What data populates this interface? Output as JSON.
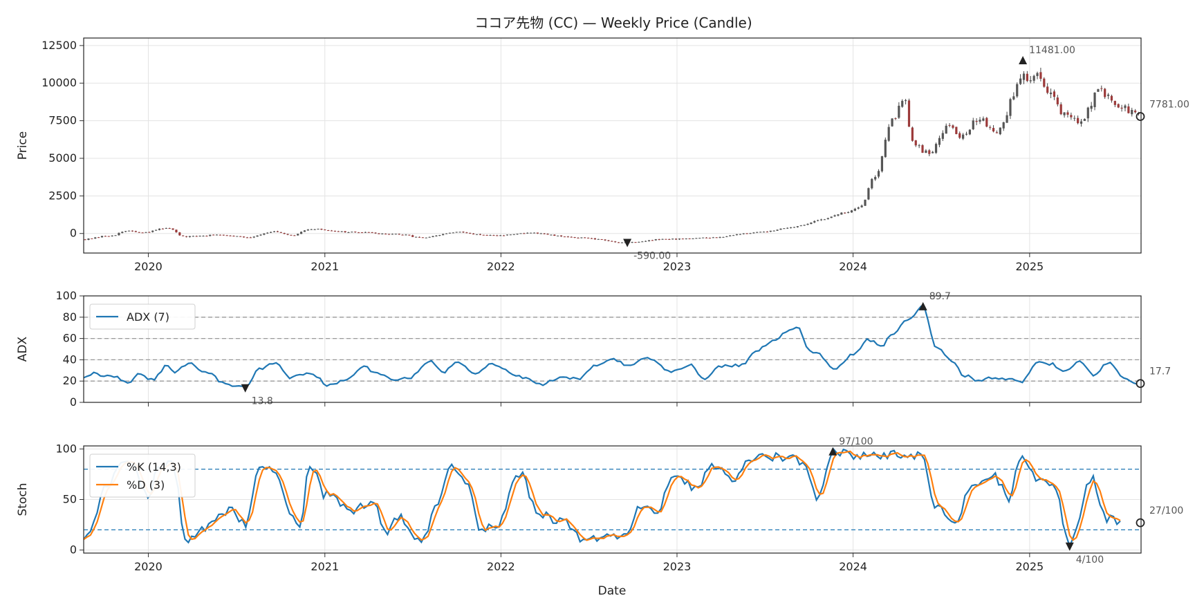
{
  "title": "ココア先物 (CC) — Weekly Price (Candle)",
  "xlabel": "Date",
  "chart_data": [
    {
      "type": "candlestick",
      "name": "price-panel",
      "ylabel": "Price",
      "ylim": [
        -1300,
        13000
      ],
      "yticks": [
        0,
        2500,
        5000,
        7500,
        10000,
        12500
      ],
      "xlim": [
        "2019-08-20",
        "2025-08-20"
      ],
      "xticks": [
        "2020",
        "2021",
        "2022",
        "2023",
        "2024",
        "2025"
      ],
      "grid": true,
      "anchors": [
        [
          "2019-08-23",
          -380
        ],
        [
          "2019-10-15",
          -140
        ],
        [
          "2019-11-20",
          180
        ],
        [
          "2019-12-20",
          40
        ],
        [
          "2020-02-10",
          380
        ],
        [
          "2020-03-15",
          -220
        ],
        [
          "2020-06-01",
          -80
        ],
        [
          "2020-07-25",
          -250
        ],
        [
          "2020-09-15",
          120
        ],
        [
          "2020-10-25",
          -150
        ],
        [
          "2020-12-01",
          300
        ],
        [
          "2021-03-01",
          80
        ],
        [
          "2021-06-01",
          -60
        ],
        [
          "2021-07-25",
          -280
        ],
        [
          "2021-10-01",
          80
        ],
        [
          "2021-12-15",
          -150
        ],
        [
          "2022-03-01",
          30
        ],
        [
          "2022-06-01",
          -260
        ],
        [
          "2022-09-20",
          -590
        ],
        [
          "2022-12-10",
          -380
        ],
        [
          "2023-03-01",
          -300
        ],
        [
          "2023-06-15",
          60
        ],
        [
          "2023-09-01",
          430
        ],
        [
          "2023-11-01",
          970
        ],
        [
          "2023-12-10",
          1340
        ],
        [
          "2024-01-15",
          1700
        ],
        [
          "2024-02-15",
          3800
        ],
        [
          "2024-03-20",
          7400
        ],
        [
          "2024-04-15",
          9100
        ],
        [
          "2024-05-05",
          6000
        ],
        [
          "2024-06-05",
          5300
        ],
        [
          "2024-07-15",
          7200
        ],
        [
          "2024-08-10",
          6500
        ],
        [
          "2024-09-20",
          7600
        ],
        [
          "2024-10-25",
          6800
        ],
        [
          "2024-12-18",
          10400
        ],
        [
          "2025-01-20",
          10500
        ],
        [
          "2025-02-15",
          9300
        ],
        [
          "2025-03-15",
          7900
        ],
        [
          "2025-04-15",
          7300
        ],
        [
          "2025-05-25",
          9500
        ],
        [
          "2025-07-01",
          8500
        ],
        [
          "2025-08-15",
          7900
        ]
      ],
      "annotations": [
        {
          "label": "11481.00",
          "date": "2024-12-18",
          "value": 11481,
          "marker": "max"
        },
        {
          "label": "-590.00",
          "date": "2022-09-20",
          "value": -590,
          "marker": "min"
        },
        {
          "label": "7781.00",
          "date": "2025-08-18",
          "value": 7781,
          "marker": "last"
        }
      ]
    },
    {
      "type": "line",
      "name": "adx-panel",
      "ylabel": "ADX",
      "ylim": [
        0,
        100
      ],
      "yticks": [
        0,
        20,
        40,
        60,
        80,
        100
      ],
      "reference_lines": [
        20,
        40,
        60,
        80
      ],
      "legend": "top-left",
      "series": [
        {
          "name": "ADX (7)",
          "color": "#1f77b4",
          "anchors": [
            [
              "2019-08-20",
              23
            ],
            [
              "2019-09-10",
              28
            ],
            [
              "2019-09-25",
              24
            ],
            [
              "2019-10-25",
              25
            ],
            [
              "2019-11-20",
              17
            ],
            [
              "2019-12-10",
              27
            ],
            [
              "2020-01-10",
              21
            ],
            [
              "2020-02-10",
              35
            ],
            [
              "2020-02-25",
              28
            ],
            [
              "2020-03-25",
              37
            ],
            [
              "2020-05-01",
              28
            ],
            [
              "2020-06-10",
              17
            ],
            [
              "2020-07-20",
              13.8
            ],
            [
              "2020-08-20",
              32
            ],
            [
              "2020-09-20",
              37
            ],
            [
              "2020-10-20",
              23
            ],
            [
              "2020-12-01",
              28
            ],
            [
              "2021-01-10",
              16
            ],
            [
              "2021-02-20",
              22
            ],
            [
              "2021-03-20",
              34
            ],
            [
              "2021-04-20",
              27
            ],
            [
              "2021-05-25",
              21
            ],
            [
              "2021-06-25",
              23
            ],
            [
              "2021-08-10",
              39
            ],
            [
              "2021-09-01",
              28
            ],
            [
              "2021-10-01",
              38
            ],
            [
              "2021-11-10",
              26
            ],
            [
              "2021-12-10",
              36
            ],
            [
              "2022-02-20",
              23
            ],
            [
              "2022-03-25",
              17
            ],
            [
              "2022-05-10",
              24
            ],
            [
              "2022-06-10",
              22
            ],
            [
              "2022-07-20",
              35
            ],
            [
              "2022-08-20",
              41
            ],
            [
              "2022-09-25",
              34
            ],
            [
              "2022-11-01",
              42
            ],
            [
              "2022-12-20",
              29
            ],
            [
              "2023-02-01",
              35
            ],
            [
              "2023-02-25",
              22
            ],
            [
              "2023-04-01",
              34
            ],
            [
              "2023-05-15",
              35
            ],
            [
              "2023-06-10",
              47
            ],
            [
              "2023-07-20",
              58
            ],
            [
              "2023-08-20",
              67
            ],
            [
              "2023-09-10",
              70
            ],
            [
              "2023-10-01",
              48
            ],
            [
              "2023-10-20",
              46
            ],
            [
              "2023-11-25",
              31
            ],
            [
              "2024-01-01",
              45
            ],
            [
              "2024-02-01",
              59
            ],
            [
              "2024-03-01",
              52
            ],
            [
              "2024-03-20",
              64
            ],
            [
              "2024-05-01",
              80
            ],
            [
              "2024-05-25",
              89.7
            ],
            [
              "2024-06-20",
              53
            ],
            [
              "2024-07-20",
              40
            ],
            [
              "2024-08-20",
              25
            ],
            [
              "2024-09-20",
              20
            ],
            [
              "2024-10-15",
              23
            ],
            [
              "2024-11-15",
              22
            ],
            [
              "2024-12-15",
              19
            ],
            [
              "2025-01-20",
              39
            ],
            [
              "2025-02-15",
              36
            ],
            [
              "2025-03-15",
              29
            ],
            [
              "2025-04-15",
              38
            ],
            [
              "2025-05-15",
              26
            ],
            [
              "2025-06-15",
              38
            ],
            [
              "2025-07-15",
              22
            ],
            [
              "2025-08-18",
              17.7
            ]
          ]
        }
      ],
      "annotations": [
        {
          "label": "89.7",
          "date": "2024-05-25",
          "value": 89.7,
          "marker": "max"
        },
        {
          "label": "13.8",
          "date": "2020-07-20",
          "value": 13.8,
          "marker": "min"
        },
        {
          "label": "17.7",
          "date": "2025-08-18",
          "value": 17.7,
          "marker": "last"
        }
      ]
    },
    {
      "type": "line",
      "name": "stoch-panel",
      "ylabel": "Stoch",
      "ylim": [
        -3,
        103
      ],
      "yticks": [
        0,
        50,
        100
      ],
      "reference_lines": [
        20,
        80
      ],
      "legend": "top-left",
      "series": [
        {
          "name": "%K (14,3)",
          "color": "#1f77b4",
          "anchors": [
            [
              "2019-08-20",
              10
            ],
            [
              "2019-09-01",
              20
            ],
            [
              "2019-10-10",
              65
            ],
            [
              "2019-11-10",
              90
            ],
            [
              "2019-12-01",
              85
            ],
            [
              "2020-01-01",
              50
            ],
            [
              "2020-01-20",
              80
            ],
            [
              "2020-02-20",
              85
            ],
            [
              "2020-03-20",
              10
            ],
            [
              "2020-04-20",
              20
            ],
            [
              "2020-06-20",
              40
            ],
            [
              "2020-07-20",
              25
            ],
            [
              "2020-08-20",
              85
            ],
            [
              "2020-09-20",
              80
            ],
            [
              "2020-10-20",
              35
            ],
            [
              "2020-11-10",
              20
            ],
            [
              "2020-12-01",
              85
            ],
            [
              "2021-01-01",
              55
            ],
            [
              "2021-03-01",
              38
            ],
            [
              "2021-04-10",
              50
            ],
            [
              "2021-05-10",
              15
            ],
            [
              "2021-06-01",
              34
            ],
            [
              "2021-07-20",
              8
            ],
            [
              "2021-08-20",
              40
            ],
            [
              "2021-09-20",
              85
            ],
            [
              "2021-10-20",
              70
            ],
            [
              "2021-11-20",
              20
            ],
            [
              "2021-12-20",
              22
            ],
            [
              "2022-02-10",
              76
            ],
            [
              "2022-03-20",
              35
            ],
            [
              "2022-05-10",
              28
            ],
            [
              "2022-06-20",
              10
            ],
            [
              "2022-08-01",
              14
            ],
            [
              "2022-09-10",
              12
            ],
            [
              "2022-10-20",
              45
            ],
            [
              "2022-11-20",
              35
            ],
            [
              "2022-12-20",
              72
            ],
            [
              "2023-02-10",
              62
            ],
            [
              "2023-03-15",
              84
            ],
            [
              "2023-05-01",
              68
            ],
            [
              "2023-06-01",
              91
            ],
            [
              "2023-08-01",
              92
            ],
            [
              "2023-09-20",
              88
            ],
            [
              "2023-10-20",
              52
            ],
            [
              "2023-11-20",
              97
            ],
            [
              "2024-02-01",
              93
            ],
            [
              "2024-04-01",
              94
            ],
            [
              "2024-05-20",
              94
            ],
            [
              "2024-06-20",
              45
            ],
            [
              "2024-08-01",
              25
            ],
            [
              "2024-09-01",
              62
            ],
            [
              "2024-10-20",
              72
            ],
            [
              "2024-11-20",
              52
            ],
            [
              "2024-12-15",
              94
            ],
            [
              "2025-01-20",
              68
            ],
            [
              "2025-02-20",
              66
            ],
            [
              "2025-03-25",
              4
            ],
            [
              "2025-05-10",
              70
            ],
            [
              "2025-06-10",
              32
            ],
            [
              "2025-07-10",
              27
            ]
          ]
        },
        {
          "name": "%D (3)",
          "color": "#ff7f0e",
          "lag_weeks": 2
        }
      ],
      "annotations": [
        {
          "label": "97/100",
          "date": "2023-11-20",
          "value": 97,
          "marker": "max"
        },
        {
          "label": "4/100",
          "date": "2025-03-25",
          "value": 4,
          "marker": "min"
        },
        {
          "label": "27/100",
          "date": "2025-07-10",
          "value": 27,
          "marker": "last"
        }
      ]
    }
  ]
}
